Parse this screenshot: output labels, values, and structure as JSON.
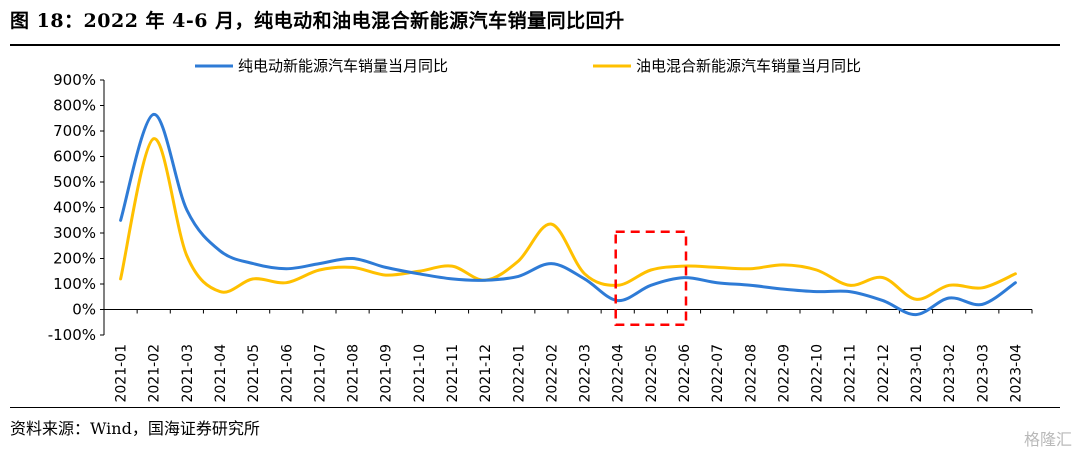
{
  "figure": {
    "title": "图 18：2022 年 4-6 月，纯电动和油电混合新能源汽车销量同比回升",
    "source": "资料来源：Wind，国海证券研究所",
    "watermark": "格隆汇"
  },
  "chart_data": {
    "type": "line",
    "title": "",
    "xlabel": "",
    "ylabel": "",
    "ylim": [
      -100,
      900
    ],
    "yticks": [
      "-100%",
      "0%",
      "100%",
      "200%",
      "300%",
      "400%",
      "500%",
      "600%",
      "700%",
      "800%",
      "900%"
    ],
    "legend_position": "top",
    "grid": false,
    "categories": [
      "2021-01",
      "2021-02",
      "2021-03",
      "2021-04",
      "2021-05",
      "2021-06",
      "2021-07",
      "2021-08",
      "2021-09",
      "2021-10",
      "2021-11",
      "2021-12",
      "2022-01",
      "2022-02",
      "2022-03",
      "2022-04",
      "2022-05",
      "2022-06",
      "2022-07",
      "2022-08",
      "2022-09",
      "2022-10",
      "2022-11",
      "2022-12",
      "2023-01",
      "2023-02",
      "2023-03",
      "2023-04"
    ],
    "series": [
      {
        "name": "纯电动新能源汽车销量当月同比",
        "color": "#2E7BD6",
        "values": [
          350,
          765,
          390,
          230,
          180,
          160,
          180,
          200,
          165,
          140,
          120,
          115,
          130,
          180,
          120,
          35,
          95,
          125,
          105,
          95,
          80,
          70,
          70,
          35,
          -20,
          45,
          20,
          105
        ]
      },
      {
        "name": "油电混合新能源汽车销量当月同比",
        "color": "#FFC000",
        "values": [
          120,
          670,
          210,
          70,
          120,
          105,
          155,
          165,
          135,
          150,
          170,
          115,
          190,
          335,
          140,
          95,
          155,
          170,
          165,
          160,
          175,
          155,
          95,
          125,
          40,
          95,
          85,
          140
        ]
      }
    ],
    "annotation": {
      "type": "dashed-rectangle",
      "color": "#FF0000",
      "x_from": "2022-04",
      "x_to": "2022-06",
      "y_from": -60,
      "y_to": 305
    }
  }
}
